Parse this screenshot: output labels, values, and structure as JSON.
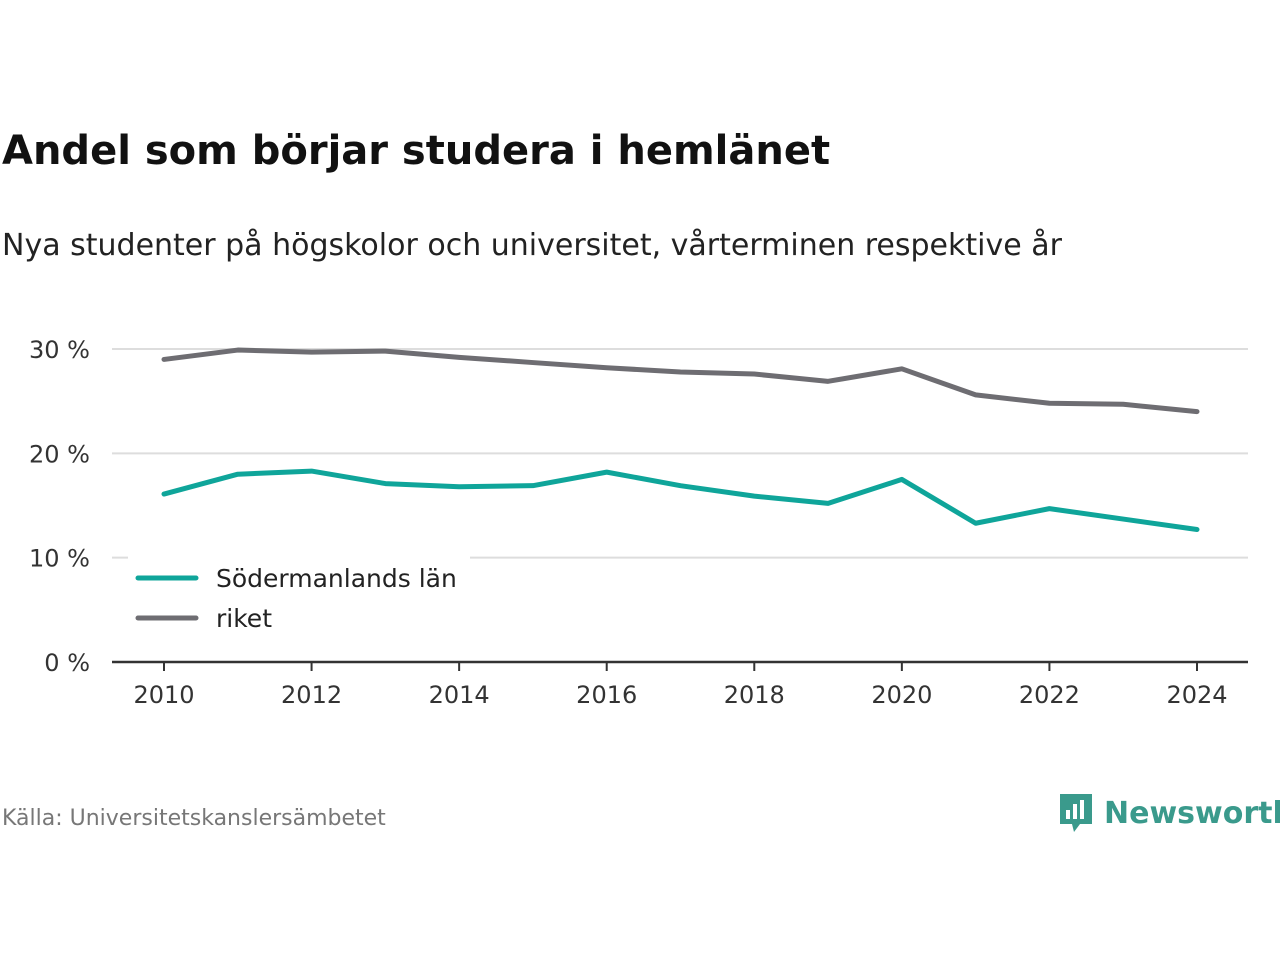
{
  "header": {
    "title": "Andel som börjar studera i hemlänet",
    "subtitle": "Nya studenter på högskolor och universitet, vårterminen respektive år"
  },
  "footer": {
    "source": "Källa: Universitetskanslersämbetet",
    "brand": "Newsworthy",
    "brand_icon": "newsworthy-logo-icon"
  },
  "colors": {
    "sodermanland": "#0fa59a",
    "riket": "#6e6d72",
    "grid": "#dddddd",
    "axis": "#333333",
    "brand": "#3a9a8c"
  },
  "chart_data": {
    "type": "line",
    "x": [
      2010,
      2011,
      2012,
      2013,
      2014,
      2015,
      2016,
      2017,
      2018,
      2019,
      2020,
      2021,
      2022,
      2023,
      2024
    ],
    "x_ticks": [
      "2010",
      "2012",
      "2014",
      "2016",
      "2018",
      "2020",
      "2022",
      "2024"
    ],
    "y_ticks": [
      "0 %",
      "10 %",
      "20 %",
      "30 %"
    ],
    "ylim": [
      0,
      30
    ],
    "grid": true,
    "legend_position": "bottom-left",
    "series": [
      {
        "name": "Södermanlands län",
        "values": [
          16.1,
          18.0,
          18.3,
          17.1,
          16.8,
          16.9,
          18.2,
          16.9,
          15.9,
          15.2,
          17.5,
          13.3,
          14.7,
          13.7,
          12.7
        ]
      },
      {
        "name": "riket",
        "values": [
          29.0,
          29.9,
          29.7,
          29.8,
          29.2,
          28.7,
          28.2,
          27.8,
          27.6,
          26.9,
          28.1,
          25.6,
          24.8,
          24.7,
          24.0
        ]
      }
    ]
  }
}
